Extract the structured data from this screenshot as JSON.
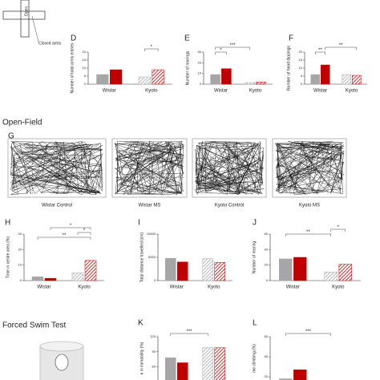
{
  "maze": {
    "labels": [
      "Open",
      "Closed arms"
    ]
  },
  "open_field": {
    "title": "Open-Field",
    "panel": "G",
    "labels": [
      "Wistar  Control",
      "Wistar MS",
      "Kyoto Control",
      "Kyoto MS"
    ]
  },
  "forced_swim": {
    "title": "Forced Swim Test"
  },
  "chart_data": [
    {
      "type": "bar",
      "panel": "D",
      "ylabel": "Number of total arms entries",
      "categories": [
        "Wistar",
        "Kyoto"
      ],
      "series": [
        {
          "color": "#a6a6a6",
          "values": [
            6,
            4.5
          ]
        },
        {
          "color": "#c00000",
          "values": [
            9,
            9
          ]
        }
      ],
      "hatch": [
        false,
        true
      ],
      "ylim": [
        0,
        20
      ],
      "yticks": [
        0,
        5,
        10,
        15,
        20
      ],
      "annotations": [
        "*"
      ]
    },
    {
      "type": "bar",
      "panel": "E",
      "ylabel": "Number of rearings",
      "categories": [
        "Wistar",
        "Kyoto"
      ],
      "series": [
        {
          "color": "#a6a6a6",
          "values": [
            9,
            1.5
          ]
        },
        {
          "color": "#c00000",
          "values": [
            14.5,
            2
          ]
        }
      ],
      "hatch": [
        false,
        true
      ],
      "ylim": [
        0,
        30
      ],
      "yticks": [
        0,
        10,
        20,
        30
      ],
      "annotations": [
        "*",
        "***"
      ]
    },
    {
      "type": "bar",
      "panel": "F",
      "ylabel": "Number of head dippings",
      "categories": [
        "Wistar",
        "Kyoto"
      ],
      "series": [
        {
          "color": "#a6a6a6",
          "values": [
            6,
            6
          ]
        },
        {
          "color": "#c00000",
          "values": [
            12,
            5.5
          ]
        }
      ],
      "hatch": [
        false,
        true
      ],
      "ylim": [
        0,
        20
      ],
      "yticks": [
        0,
        5,
        10,
        15,
        20
      ],
      "annotations": [
        "**",
        "**"
      ]
    },
    {
      "type": "bar",
      "panel": "H",
      "ylabel": "Time in centre area (%)",
      "categories": [
        "Wistar",
        "Kyoto"
      ],
      "series": [
        {
          "color": "#a6a6a6",
          "values": [
            2.5,
            5
          ]
        },
        {
          "color": "#c00000",
          "values": [
            1.5,
            13
          ]
        }
      ],
      "hatch": [
        false,
        true
      ],
      "ylim": [
        0,
        30
      ],
      "yticks": [
        0,
        10,
        20,
        30
      ],
      "annotations": [
        "**",
        "*",
        "*"
      ]
    },
    {
      "type": "bar",
      "panel": "I",
      "ylabel": "Total distance travelled (cm)",
      "categories": [
        "Wistar",
        "Kyoto"
      ],
      "series": [
        {
          "color": "#a6a6a6",
          "values": [
            4800,
            4700
          ]
        },
        {
          "color": "#c00000",
          "values": [
            4000,
            3900
          ]
        }
      ],
      "hatch": [
        false,
        true
      ],
      "ylim": [
        0,
        10000
      ],
      "yticks": [
        0,
        5000,
        10000
      ]
    },
    {
      "type": "bar",
      "panel": "J",
      "ylabel": "Number of rearing",
      "categories": [
        "Wistar",
        "Kyoto"
      ],
      "series": [
        {
          "color": "#a6a6a6",
          "values": [
            28,
            11
          ]
        },
        {
          "color": "#c00000",
          "values": [
            30,
            21
          ]
        }
      ],
      "hatch": [
        false,
        true
      ],
      "ylim": [
        0,
        60
      ],
      "yticks": [
        0,
        20,
        40,
        60
      ],
      "annotations": [
        "**",
        "*"
      ]
    },
    {
      "type": "bar",
      "panel": "K",
      "ylabel": "e in immobility (%)",
      "categories": [
        null,
        null
      ],
      "series": [
        {
          "color": "#a6a6a6",
          "values": [
            78,
            98
          ]
        },
        {
          "color": "#c00000",
          "values": [
            68,
            98
          ]
        }
      ],
      "hatch": [
        false,
        true
      ],
      "ylim": [
        0,
        120
      ],
      "yticks": [
        60,
        90,
        120
      ],
      "annotations": [
        "***"
      ]
    },
    {
      "type": "bar",
      "panel": "L",
      "ylabel": "me climbing (%)",
      "categories": [
        null,
        null
      ],
      "series": [
        {
          "color": "#a6a6a6",
          "values": [
            18,
            null
          ]
        },
        {
          "color": "#c00000",
          "values": [
            27,
            null
          ]
        }
      ],
      "hatch": [
        false,
        true
      ],
      "ylim": [
        0,
        60
      ],
      "yticks": [
        20,
        40,
        60
      ],
      "annotations": [
        "***"
      ]
    }
  ]
}
